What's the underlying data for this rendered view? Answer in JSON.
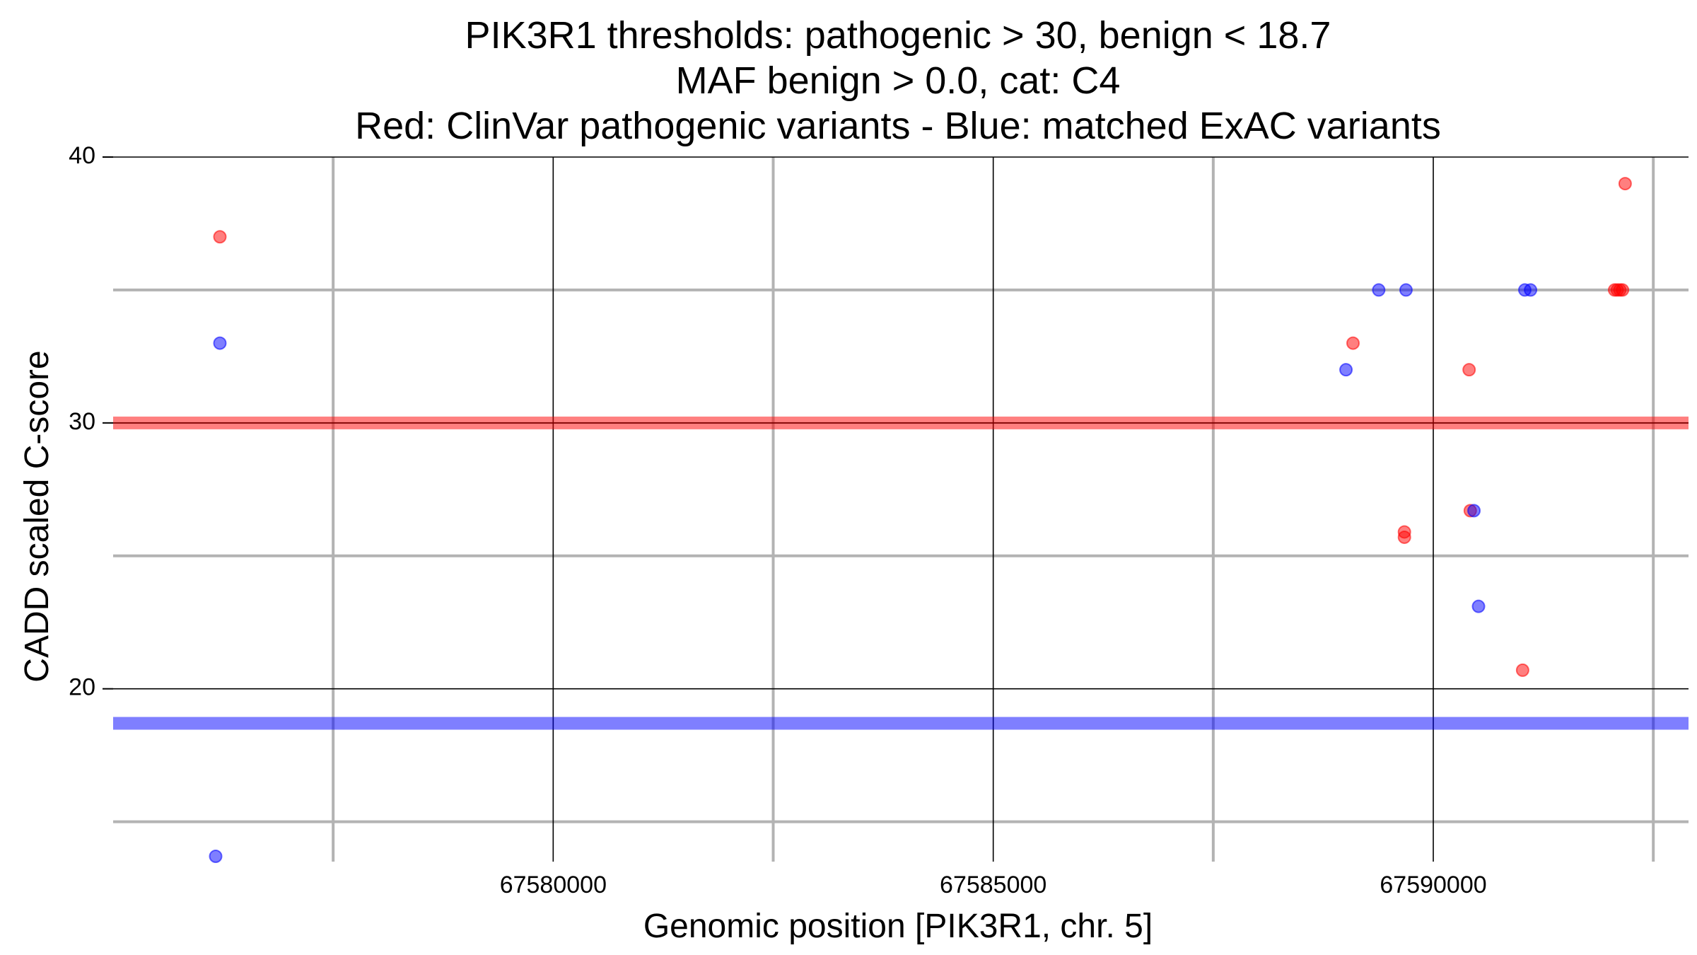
{
  "chart_data": {
    "type": "scatter",
    "title_lines": [
      "PIK3R1 thresholds: pathogenic > 30, benign < 18.7",
      "MAF benign > 0.0, cat: C4",
      "Red: ClinVar pathogenic variants - Blue: matched ExAC variants"
    ],
    "xlabel": "Genomic position [PIK3R1, chr. 5]",
    "ylabel": "CADD scaled C-score",
    "xlim": [
      67575000,
      67592900
    ],
    "ylim": [
      13.5,
      40
    ],
    "x_major_ticks": [
      67580000,
      67585000,
      67590000
    ],
    "x_tick_labels": [
      "67580000",
      "67585000",
      "67590000"
    ],
    "x_minor_ticks": [
      67577500,
      67582500,
      67587500,
      67592500
    ],
    "y_major_ticks": [
      20,
      30,
      40
    ],
    "y_tick_labels": [
      "20",
      "30",
      "40"
    ],
    "y_minor_ticks": [
      15,
      25,
      35
    ],
    "thresholds": [
      {
        "name": "pathogenic",
        "value": 30,
        "color": "#ff0000"
      },
      {
        "name": "benign",
        "value": 18.7,
        "color": "#0000ff"
      }
    ],
    "series": [
      {
        "name": "ClinVar pathogenic variants",
        "color": "#ff0000",
        "points": [
          {
            "x": 67576213,
            "y": 37
          },
          {
            "x": 67589088,
            "y": 33
          },
          {
            "x": 67589672,
            "y": 25.9
          },
          {
            "x": 67589672,
            "y": 25.7
          },
          {
            "x": 67590407,
            "y": 32
          },
          {
            "x": 67590420,
            "y": 26.7
          },
          {
            "x": 67591015,
            "y": 20.7
          },
          {
            "x": 67592060,
            "y": 35
          },
          {
            "x": 67592090,
            "y": 35
          },
          {
            "x": 67592120,
            "y": 35
          },
          {
            "x": 67592150,
            "y": 35
          },
          {
            "x": 67592180,
            "y": 39
          }
        ]
      },
      {
        "name": "matched ExAC variants",
        "color": "#0000ff",
        "points": [
          {
            "x": 67576213,
            "y": 33
          },
          {
            "x": 67576165,
            "y": 13.7
          },
          {
            "x": 67589008,
            "y": 32
          },
          {
            "x": 67589380,
            "y": 35
          },
          {
            "x": 67589690,
            "y": 35
          },
          {
            "x": 67590462,
            "y": 26.7
          },
          {
            "x": 67590514,
            "y": 23.1
          },
          {
            "x": 67591040,
            "y": 35
          },
          {
            "x": 67591105,
            "y": 35
          }
        ]
      }
    ]
  }
}
